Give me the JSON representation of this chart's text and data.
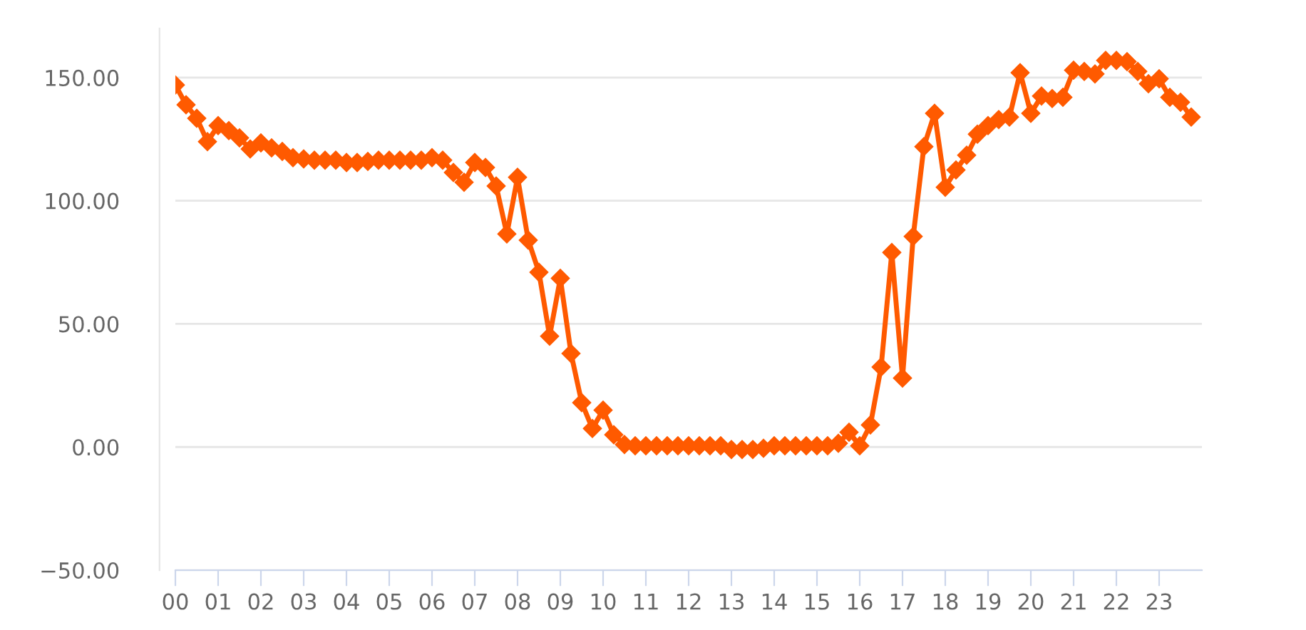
{
  "chart_data": {
    "type": "line",
    "color": "#ff5a00",
    "marker": "diamond",
    "line_style": "solid",
    "grid": "y",
    "x": [
      0,
      0.25,
      0.5,
      0.75,
      1,
      1.25,
      1.5,
      1.75,
      2,
      2.25,
      2.5,
      2.75,
      3,
      3.25,
      3.5,
      3.75,
      4,
      4.25,
      4.5,
      4.75,
      5,
      5.25,
      5.5,
      5.75,
      6,
      6.25,
      6.5,
      6.75,
      7,
      7.25,
      7.5,
      7.75,
      8,
      8.25,
      8.5,
      8.75,
      9,
      9.25,
      9.5,
      9.75,
      10,
      10.25,
      10.5,
      10.75,
      11,
      11.25,
      11.5,
      11.75,
      12,
      12.25,
      12.5,
      12.75,
      13,
      13.25,
      13.5,
      13.75,
      14,
      14.25,
      14.5,
      14.75,
      15,
      15.25,
      15.5,
      15.75,
      16,
      16.25,
      16.5,
      16.75,
      17,
      17.25,
      17.5,
      17.75,
      18,
      18.25,
      18.5,
      18.75,
      19,
      19.25,
      19.5,
      19.75,
      20,
      20.25,
      20.5,
      20.75,
      21,
      21.25,
      21.5,
      21.75,
      22,
      22.25,
      22.5,
      22.75,
      23,
      23.25,
      23.5,
      23.75
    ],
    "values": [
      147,
      139,
      133.5,
      124,
      130.5,
      128.5,
      125.5,
      121,
      123.5,
      121.5,
      120,
      117.5,
      117,
      116.5,
      116.5,
      116.5,
      115.5,
      115.5,
      116,
      116.5,
      116.5,
      116.5,
      116.5,
      116.5,
      117.5,
      116.5,
      111.5,
      107.5,
      115.5,
      113.5,
      106,
      86.5,
      109.5,
      84,
      71,
      45,
      68.5,
      38,
      18,
      7.5,
      15,
      5,
      1,
      0.5,
      0.5,
      0.5,
      0.5,
      0.5,
      0.5,
      0.5,
      0.5,
      0.5,
      -1,
      -1,
      -1,
      -0.5,
      0.5,
      0.5,
      0.5,
      0.5,
      0.5,
      0.5,
      1.5,
      6,
      0.5,
      9,
      32.5,
      79,
      28,
      85.5,
      122,
      135.5,
      105.5,
      112.5,
      118.5,
      127,
      130.5,
      133,
      134,
      152,
      135.5,
      142.5,
      141.5,
      142,
      153,
      152.5,
      151.5,
      157,
      157,
      156.5,
      152.5,
      147.5,
      149.5,
      142,
      140,
      134
    ],
    "xlim": [
      0,
      24
    ],
    "xticks": [
      {
        "value": 0,
        "label": "00"
      },
      {
        "value": 1,
        "label": "01"
      },
      {
        "value": 2,
        "label": "02"
      },
      {
        "value": 3,
        "label": "03"
      },
      {
        "value": 4,
        "label": "04"
      },
      {
        "value": 5,
        "label": "05"
      },
      {
        "value": 6,
        "label": "06"
      },
      {
        "value": 7,
        "label": "07"
      },
      {
        "value": 8,
        "label": "08"
      },
      {
        "value": 9,
        "label": "09"
      },
      {
        "value": 10,
        "label": "10"
      },
      {
        "value": 11,
        "label": "11"
      },
      {
        "value": 12,
        "label": "12"
      },
      {
        "value": 13,
        "label": "13"
      },
      {
        "value": 14,
        "label": "14"
      },
      {
        "value": 15,
        "label": "15"
      },
      {
        "value": 16,
        "label": "16"
      },
      {
        "value": 17,
        "label": "17"
      },
      {
        "value": 18,
        "label": "18"
      },
      {
        "value": 19,
        "label": "19"
      },
      {
        "value": 20,
        "label": "20"
      },
      {
        "value": 21,
        "label": "21"
      },
      {
        "value": 22,
        "label": "22"
      },
      {
        "value": 23,
        "label": "23"
      }
    ],
    "ylim": [
      -50,
      170
    ],
    "yticks": [
      {
        "value": -50,
        "label": "−50.00"
      },
      {
        "value": 0,
        "label": "0.00"
      },
      {
        "value": 50,
        "label": "50.00"
      },
      {
        "value": 100,
        "label": "100.00"
      },
      {
        "value": 150,
        "label": "150.00"
      }
    ]
  }
}
